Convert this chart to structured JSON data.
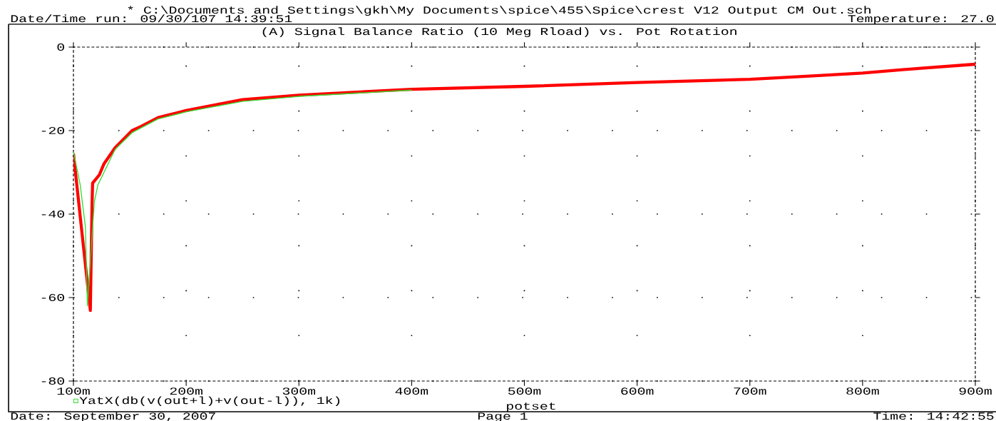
{
  "chart_data": {
    "type": "line",
    "title": "(A) Signal Balance Ratio (10 Meg Rload) vs. Pot Rotation",
    "subtitle": "* C:\\Documents and Settings\\gkh\\My Documents\\spice\\455\\Spice\\crest V12 Output CM Out.sch",
    "xlabel": "potset",
    "annotations": [
      "Date/Time run: 09/30/107 14:39:51",
      "Temperature: 27.0",
      "Date: September 30, 2007",
      "Page 1",
      "Time: 14:42:55"
    ],
    "xlim": [
      100,
      900
    ],
    "ylim": [
      -80,
      0
    ],
    "xticks": [
      {
        "value": 100,
        "label": "100m"
      },
      {
        "value": 200,
        "label": "200m"
      },
      {
        "value": 300,
        "label": "300m"
      },
      {
        "value": 400,
        "label": "400m"
      },
      {
        "value": 500,
        "label": "500m"
      },
      {
        "value": 600,
        "label": "600m"
      },
      {
        "value": 700,
        "label": "700m"
      },
      {
        "value": 800,
        "label": "800m"
      },
      {
        "value": 900,
        "label": "900m"
      }
    ],
    "yticks": [
      -80,
      -60,
      -40,
      -20,
      0
    ],
    "grid": true,
    "legend": "bottom",
    "marker": "none",
    "line_style": "solid",
    "series": [
      {
        "color": "#ff0000",
        "x": [
          100,
          115,
          116.5,
          117,
          123,
          127,
          137,
          152,
          160,
          175,
          200,
          250,
          300,
          400,
          500,
          600,
          700,
          750,
          800,
          850,
          900
        ],
        "values": [
          -25.5,
          -63.1,
          -37.8,
          -32.6,
          -30.6,
          -28,
          -24.1,
          -20,
          -19,
          -16.9,
          -15.2,
          -12.6,
          -11.5,
          -10.1,
          -9.4,
          -8.5,
          -7.7,
          -7.0,
          -6.2,
          -5.1,
          -4.1
        ]
      },
      {
        "name": "YatX(db(v(out+l)+v(out-l)), 1k)",
        "color": "#33dd33",
        "x": [
          100,
          106,
          110.6,
          112.4,
          116.8,
          118.6,
          121.7,
          137,
          152,
          175,
          200,
          250,
          300,
          400
        ],
        "values": [
          -25,
          -33,
          -43,
          -62,
          -44,
          -37,
          -33,
          -24.5,
          -20.5,
          -17.2,
          -15.5,
          -13,
          -11.8,
          -10.3
        ]
      }
    ]
  }
}
